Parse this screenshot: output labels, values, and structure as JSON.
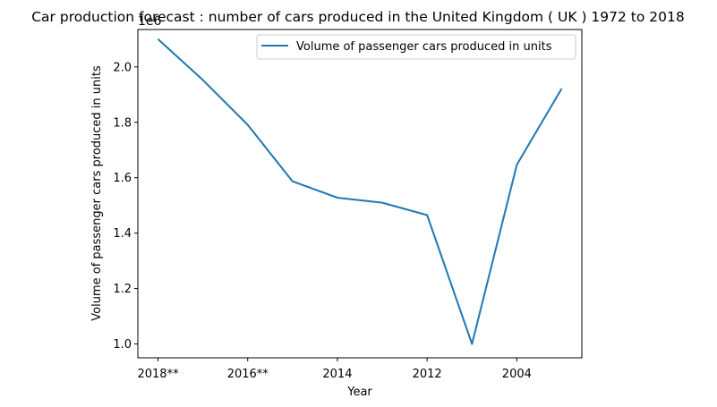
{
  "chart_data": {
    "type": "line",
    "title": "Car production forecast : number of cars produced in the United Kingdom ( UK ) 1972 to 2018",
    "xlabel": "Year",
    "ylabel": "Volume of passenger cars produced in units",
    "y_offset_label": "1e6",
    "x_tick_labels": [
      "2018**",
      "2016**",
      "2014",
      "2012",
      "2004"
    ],
    "x_tick_positions": [
      0,
      2,
      4,
      6,
      8
    ],
    "y_ticks": [
      1.0,
      1.2,
      1.4,
      1.6,
      1.8,
      2.0
    ],
    "y_tick_labels": [
      "1.0",
      "1.2",
      "1.4",
      "1.6",
      "1.8",
      "2.0"
    ],
    "ylim": [
      0.95,
      2.135
    ],
    "xlim": [
      -0.45,
      9.45
    ],
    "grid": false,
    "legend_position": "top-right",
    "series": [
      {
        "name": "Volume of passenger cars produced in units",
        "color": "#1f77b4",
        "x": [
          0,
          1,
          2,
          3,
          4,
          5,
          6,
          7,
          8,
          9
        ],
        "values": [
          2.1,
          1.953,
          1.791,
          1.587,
          1.528,
          1.51,
          1.465,
          1.0,
          1.647,
          1.922
        ]
      }
    ]
  }
}
